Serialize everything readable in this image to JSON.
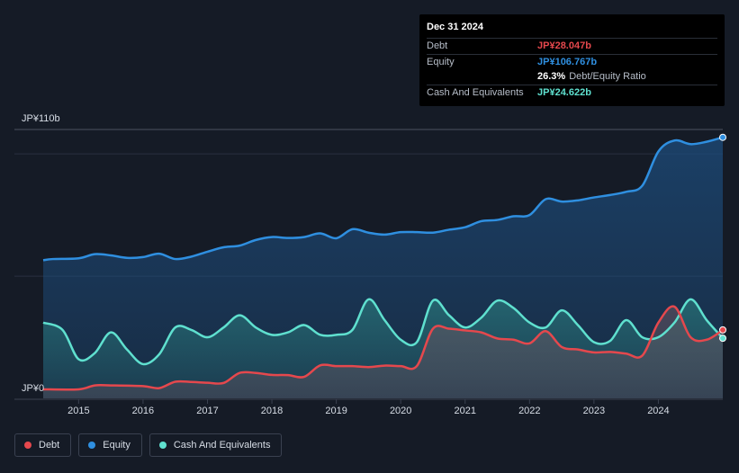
{
  "tooltip": {
    "date": "Dec 31 2024",
    "rows": [
      {
        "label": "Debt",
        "value": "JP¥28.047b",
        "color": "#e5484d"
      },
      {
        "label": "Equity",
        "value": "JP¥106.767b",
        "color": "#2f8fe0"
      },
      {
        "label": "",
        "value": "26.3%",
        "sub": "Debt/Equity Ratio",
        "color": "#ffffff"
      },
      {
        "label": "Cash And Equivalents",
        "value": "JP¥24.622b",
        "color": "#5fe0cf"
      }
    ]
  },
  "legend": [
    {
      "label": "Debt",
      "color": "#e5484d"
    },
    {
      "label": "Equity",
      "color": "#2f8fe0"
    },
    {
      "label": "Cash And Equivalents",
      "color": "#5fe0cf"
    }
  ],
  "chart_data": {
    "type": "area",
    "y_top_label": "JP¥110b",
    "y_bottom_label": "JP¥0",
    "ylim": [
      0,
      110
    ],
    "xlim": [
      2014.45,
      2025.0
    ],
    "x_ticks": [
      2015,
      2016,
      2017,
      2018,
      2019,
      2020,
      2021,
      2022,
      2023,
      2024
    ],
    "grid": true,
    "series": [
      {
        "name": "Equity",
        "color": "#2f8fe0",
        "points": [
          [
            2014.45,
            56.5
          ],
          [
            2014.6,
            57.0
          ],
          [
            2015.0,
            57.3
          ],
          [
            2015.25,
            59.0
          ],
          [
            2015.5,
            58.5
          ],
          [
            2015.75,
            57.5
          ],
          [
            2016.0,
            57.8
          ],
          [
            2016.25,
            59.2
          ],
          [
            2016.5,
            57.0
          ],
          [
            2016.75,
            58.0
          ],
          [
            2017.0,
            60.0
          ],
          [
            2017.25,
            61.8
          ],
          [
            2017.5,
            62.5
          ],
          [
            2017.75,
            64.8
          ],
          [
            2018.0,
            66.0
          ],
          [
            2018.25,
            65.6
          ],
          [
            2018.5,
            66.0
          ],
          [
            2018.75,
            67.5
          ],
          [
            2019.0,
            65.5
          ],
          [
            2019.25,
            69.2
          ],
          [
            2019.5,
            67.8
          ],
          [
            2019.75,
            67.0
          ],
          [
            2020.0,
            68.0
          ],
          [
            2020.25,
            68.0
          ],
          [
            2020.5,
            67.8
          ],
          [
            2020.75,
            69.0
          ],
          [
            2021.0,
            70.0
          ],
          [
            2021.25,
            72.5
          ],
          [
            2021.5,
            73.0
          ],
          [
            2021.75,
            74.5
          ],
          [
            2022.0,
            75.0
          ],
          [
            2022.25,
            81.5
          ],
          [
            2022.5,
            80.5
          ],
          [
            2022.75,
            81.0
          ],
          [
            2023.0,
            82.2
          ],
          [
            2023.25,
            83.2
          ],
          [
            2023.5,
            84.5
          ],
          [
            2023.75,
            87.0
          ],
          [
            2024.0,
            101.0
          ],
          [
            2024.25,
            105.5
          ],
          [
            2024.5,
            104.0
          ],
          [
            2024.75,
            105.0
          ],
          [
            2025.0,
            106.8
          ]
        ]
      },
      {
        "name": "Cash And Equivalents",
        "color": "#5fe0cf",
        "points": [
          [
            2014.45,
            31.0
          ],
          [
            2014.75,
            28.0
          ],
          [
            2015.0,
            16.0
          ],
          [
            2015.25,
            18.5
          ],
          [
            2015.5,
            27.0
          ],
          [
            2015.75,
            20.0
          ],
          [
            2016.0,
            14.0
          ],
          [
            2016.25,
            18.0
          ],
          [
            2016.5,
            29.0
          ],
          [
            2016.75,
            28.0
          ],
          [
            2017.0,
            25.0
          ],
          [
            2017.25,
            29.0
          ],
          [
            2017.5,
            34.0
          ],
          [
            2017.75,
            29.0
          ],
          [
            2018.0,
            26.0
          ],
          [
            2018.25,
            27.0
          ],
          [
            2018.5,
            30.0
          ],
          [
            2018.75,
            26.0
          ],
          [
            2019.0,
            26.0
          ],
          [
            2019.25,
            28.0
          ],
          [
            2019.5,
            40.5
          ],
          [
            2019.75,
            32.0
          ],
          [
            2020.0,
            24.0
          ],
          [
            2020.25,
            23.0
          ],
          [
            2020.5,
            40.0
          ],
          [
            2020.75,
            34.0
          ],
          [
            2021.0,
            29.0
          ],
          [
            2021.25,
            33.0
          ],
          [
            2021.5,
            40.0
          ],
          [
            2021.75,
            37.0
          ],
          [
            2022.0,
            31.0
          ],
          [
            2022.25,
            29.0
          ],
          [
            2022.5,
            36.0
          ],
          [
            2022.75,
            30.0
          ],
          [
            2023.0,
            23.0
          ],
          [
            2023.25,
            23.5
          ],
          [
            2023.5,
            32.0
          ],
          [
            2023.75,
            25.0
          ],
          [
            2024.0,
            25.0
          ],
          [
            2024.25,
            31.0
          ],
          [
            2024.5,
            40.5
          ],
          [
            2024.75,
            32.0
          ],
          [
            2025.0,
            24.6
          ]
        ]
      },
      {
        "name": "Debt",
        "color": "#e5484d",
        "points": [
          [
            2014.45,
            3.7
          ],
          [
            2015.0,
            3.7
          ],
          [
            2015.25,
            5.3
          ],
          [
            2015.5,
            5.3
          ],
          [
            2016.0,
            5.0
          ],
          [
            2016.25,
            4.2
          ],
          [
            2016.5,
            6.8
          ],
          [
            2016.75,
            6.7
          ],
          [
            2017.0,
            6.4
          ],
          [
            2017.25,
            6.3
          ],
          [
            2017.5,
            10.4
          ],
          [
            2017.75,
            10.4
          ],
          [
            2018.0,
            9.6
          ],
          [
            2018.25,
            9.5
          ],
          [
            2018.5,
            8.8
          ],
          [
            2018.75,
            13.5
          ],
          [
            2019.0,
            13.2
          ],
          [
            2019.25,
            13.2
          ],
          [
            2019.5,
            12.8
          ],
          [
            2019.75,
            13.4
          ],
          [
            2020.0,
            13.2
          ],
          [
            2020.25,
            13.2
          ],
          [
            2020.5,
            28.5
          ],
          [
            2020.75,
            28.5
          ],
          [
            2021.0,
            27.8
          ],
          [
            2021.25,
            27.0
          ],
          [
            2021.5,
            24.5
          ],
          [
            2021.75,
            24.0
          ],
          [
            2022.0,
            22.5
          ],
          [
            2022.25,
            27.5
          ],
          [
            2022.5,
            21.0
          ],
          [
            2022.75,
            20.0
          ],
          [
            2023.0,
            18.8
          ],
          [
            2023.25,
            19.0
          ],
          [
            2023.5,
            18.3
          ],
          [
            2023.75,
            17.5
          ],
          [
            2024.0,
            31.0
          ],
          [
            2024.25,
            37.5
          ],
          [
            2024.5,
            25.0
          ],
          [
            2024.75,
            24.0
          ],
          [
            2025.0,
            28.0
          ]
        ]
      }
    ]
  }
}
